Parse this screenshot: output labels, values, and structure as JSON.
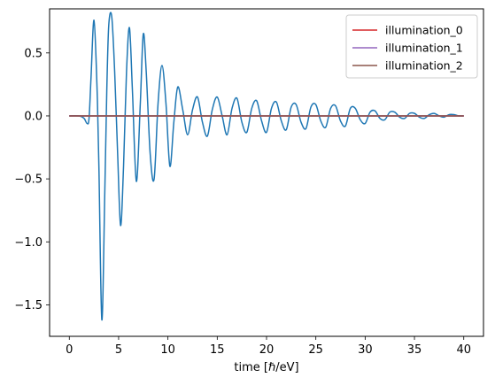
{
  "chart_data": {
    "type": "line",
    "title": "",
    "xlabel": "time [ℏ/eV]",
    "ylabel": "",
    "xlim": [
      -2,
      42
    ],
    "ylim": [
      -1.75,
      0.85
    ],
    "x_ticks": [
      0,
      5,
      10,
      15,
      20,
      25,
      30,
      35,
      40
    ],
    "x_tick_labels": [
      "0",
      "5",
      "10",
      "15",
      "20",
      "25",
      "30",
      "35",
      "40"
    ],
    "y_ticks": [
      0.5,
      0.0,
      -0.5,
      -1.0,
      -1.5
    ],
    "y_tick_labels": [
      "0.5",
      "0.0",
      "−0.5",
      "−1.0",
      "−1.5"
    ],
    "grid": false,
    "legend_position": "top-right",
    "series": [
      {
        "color": "#1f77b4",
        "x": [
          0,
          1.0,
          1.5,
          1.8,
          2.0,
          2.2,
          2.5,
          2.8,
          3.0,
          3.3,
          3.6,
          3.8,
          4.0,
          4.3,
          4.6,
          4.9,
          5.2,
          5.5,
          5.8,
          6.1,
          6.4,
          6.8,
          7.2,
          7.5,
          7.8,
          8.2,
          8.6,
          9.0,
          9.4,
          9.8,
          10.2,
          10.6,
          11.0,
          11.5,
          12.0,
          12.5,
          13.0,
          13.5,
          14.0,
          14.5,
          15.0,
          15.5,
          16.0,
          16.5,
          17.0,
          17.5,
          18.0,
          18.5,
          19.0,
          19.5,
          20.0,
          20.5,
          21.0,
          21.5,
          22.0,
          22.5,
          23.0,
          23.5,
          24.0,
          24.5,
          25.0,
          25.5,
          26.0,
          26.5,
          27.0,
          27.5,
          28.0,
          28.5,
          29.0,
          29.5,
          30.0,
          30.5,
          31.0,
          31.5,
          32.0,
          32.5,
          33.0,
          33.5,
          34.0,
          34.5,
          35.0,
          35.5,
          36.0,
          36.5,
          37.0,
          37.5,
          38.0,
          38.5,
          39.0,
          39.5,
          40.0
        ],
        "values": [
          0.0,
          0.0,
          -0.02,
          -0.06,
          -0.02,
          0.3,
          0.76,
          0.25,
          -0.4,
          -1.62,
          -0.6,
          0.2,
          0.72,
          0.79,
          0.35,
          -0.3,
          -0.87,
          -0.4,
          0.35,
          0.7,
          0.2,
          -0.52,
          0.1,
          0.65,
          0.35,
          -0.3,
          -0.5,
          0.1,
          0.4,
          0.1,
          -0.4,
          -0.05,
          0.23,
          0.05,
          -0.15,
          0.05,
          0.15,
          -0.05,
          -0.16,
          0.05,
          0.15,
          0.0,
          -0.15,
          0.06,
          0.14,
          -0.05,
          -0.13,
          0.06,
          0.12,
          -0.04,
          -0.13,
          0.06,
          0.11,
          -0.04,
          -0.11,
          0.07,
          0.09,
          -0.05,
          -0.1,
          0.07,
          0.09,
          -0.04,
          -0.09,
          0.06,
          0.08,
          -0.04,
          -0.08,
          0.06,
          0.06,
          -0.03,
          -0.06,
          0.03,
          0.04,
          -0.02,
          -0.03,
          0.03,
          0.03,
          -0.01,
          -0.02,
          0.02,
          0.02,
          -0.01,
          -0.02,
          0.01,
          0.02,
          0.0,
          -0.01,
          0.01,
          0.01,
          0.0,
          0.0
        ]
      },
      {
        "name": "illumination_0",
        "color": "#d62728",
        "x": [
          0,
          40
        ],
        "values": [
          0.0,
          0.0
        ]
      },
      {
        "name": "illumination_1",
        "color": "#9467bd",
        "x": [
          0,
          40
        ],
        "values": [
          0.0,
          0.0
        ]
      },
      {
        "name": "illumination_2",
        "color": "#8c564b",
        "x": [
          0,
          40
        ],
        "values": [
          0.0,
          0.0
        ]
      }
    ]
  }
}
